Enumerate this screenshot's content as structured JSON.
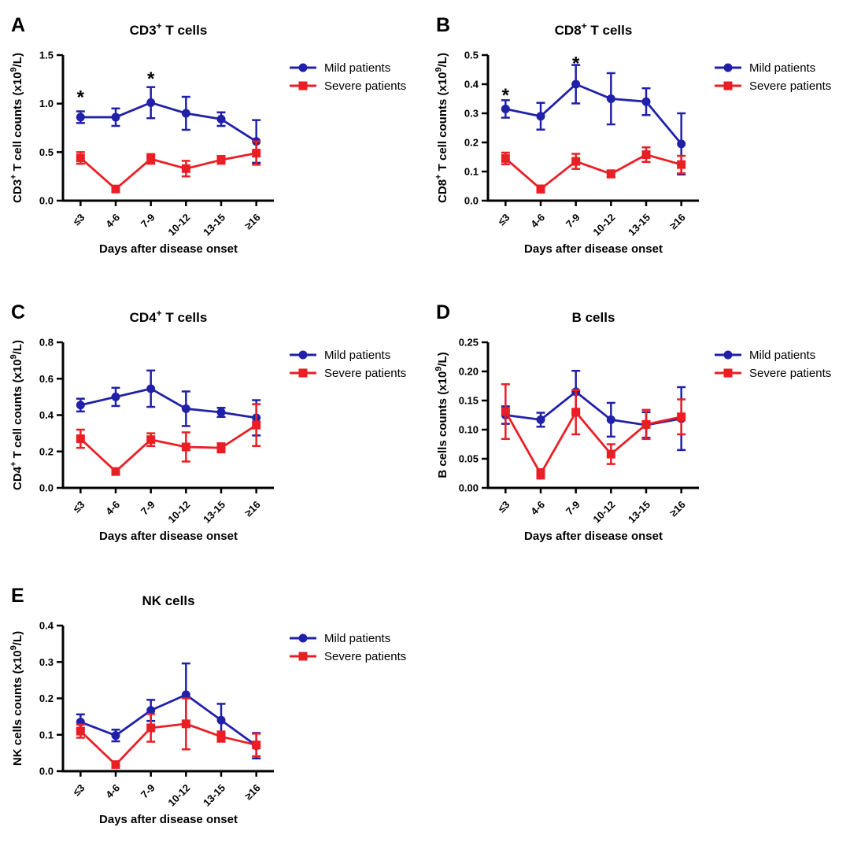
{
  "figure": {
    "background": "#ffffff",
    "text_color": "#000000",
    "x_axis_label": "Days after disease onset",
    "categories": [
      "≤3",
      "4-6",
      "7-9",
      "10-12",
      "13-15",
      "≥16"
    ],
    "legend_labels": [
      "Mild patients",
      "Severe patients"
    ],
    "colors": {
      "mild": "#2021a8",
      "severe": "#ea1f25"
    },
    "panel_letters": [
      "A",
      "B",
      "C",
      "D",
      "E"
    ]
  },
  "chart_data": [
    {
      "panel_letter": "A",
      "type": "line",
      "title": "CD3+ T cells",
      "title_parts": [
        {
          "t": "CD3"
        },
        {
          "s": "+"
        },
        {
          "t": " T cells"
        }
      ],
      "ylabel": "CD3+ T cell counts (x10^9/L)",
      "ylabel_parts": [
        {
          "t": "CD3"
        },
        {
          "s": "+"
        },
        {
          "t": " T cell counts (x10"
        },
        {
          "s": "9"
        },
        {
          "t": "/L)"
        }
      ],
      "xlabel": "Days after disease onset",
      "ylim": [
        0,
        1.5
      ],
      "yticks": [
        "0.0",
        "0.5",
        "1.0",
        "1.5"
      ],
      "categories": [
        "≤3",
        "4-6",
        "7-9",
        "10-12",
        "13-15",
        "≥16"
      ],
      "legend_position": "right-top",
      "grid": false,
      "series": [
        {
          "name": "Mild patients",
          "marker": "circle",
          "color": "#2021a8",
          "values": [
            0.86,
            0.86,
            1.01,
            0.9,
            0.84,
            0.61
          ],
          "errors": [
            0.06,
            0.09,
            0.16,
            0.17,
            0.07,
            0.22
          ]
        },
        {
          "name": "Severe patients",
          "marker": "square",
          "color": "#ea1f25",
          "values": [
            0.44,
            0.12,
            0.43,
            0.33,
            0.42,
            0.49
          ],
          "errors": [
            0.06,
            0.02,
            0.05,
            0.08,
            0.04,
            0.12
          ]
        }
      ],
      "significance": [
        {
          "category_index": 0,
          "symbol": "*",
          "y": 1.09
        },
        {
          "category_index": 2,
          "symbol": "*",
          "y": 1.28
        }
      ]
    },
    {
      "panel_letter": "B",
      "type": "line",
      "title": "CD8+ T cells",
      "title_parts": [
        {
          "t": "CD8"
        },
        {
          "s": "+"
        },
        {
          "t": " T cells"
        }
      ],
      "ylabel": "CD8+ T cell counts (x10^9/L)",
      "ylabel_parts": [
        {
          "t": "CD8"
        },
        {
          "s": "+"
        },
        {
          "t": " T cell counts (x10"
        },
        {
          "s": "9"
        },
        {
          "t": "/L)"
        }
      ],
      "xlabel": "Days after disease onset",
      "ylim": [
        0,
        0.5
      ],
      "yticks": [
        "0.0",
        "0.1",
        "0.2",
        "0.3",
        "0.4",
        "0.5"
      ],
      "categories": [
        "≤3",
        "4-6",
        "7-9",
        "10-12",
        "13-15",
        "≥16"
      ],
      "legend_position": "right-top",
      "grid": false,
      "series": [
        {
          "name": "Mild patients",
          "marker": "circle",
          "color": "#2021a8",
          "values": [
            0.315,
            0.29,
            0.4,
            0.35,
            0.34,
            0.195
          ],
          "errors": [
            0.03,
            0.046,
            0.066,
            0.088,
            0.046,
            0.105
          ]
        },
        {
          "name": "Severe patients",
          "marker": "square",
          "color": "#ea1f25",
          "values": [
            0.145,
            0.04,
            0.135,
            0.092,
            0.158,
            0.124
          ],
          "errors": [
            0.02,
            0.012,
            0.026,
            0.012,
            0.025,
            0.03
          ]
        }
      ],
      "significance": [
        {
          "category_index": 0,
          "symbol": "*",
          "y": 0.37
        },
        {
          "category_index": 2,
          "symbol": "*",
          "y": 0.48
        }
      ]
    },
    {
      "panel_letter": "C",
      "type": "line",
      "title": "CD4+ T cells",
      "title_parts": [
        {
          "t": "CD4"
        },
        {
          "s": "+"
        },
        {
          "t": " T cells"
        }
      ],
      "ylabel": "CD4+ T cell counts (x10^9/L)",
      "ylabel_parts": [
        {
          "t": "CD4"
        },
        {
          "s": "+"
        },
        {
          "t": " T cell counts (x10"
        },
        {
          "s": "9"
        },
        {
          "t": "/L)"
        }
      ],
      "xlabel": "Days after disease onset",
      "ylim": [
        0,
        0.8
      ],
      "yticks": [
        "0.0",
        "0.2",
        "0.4",
        "0.6",
        "0.8"
      ],
      "categories": [
        "≤3",
        "4-6",
        "7-9",
        "10-12",
        "13-15",
        "≥16"
      ],
      "legend_position": "right-top",
      "grid": false,
      "series": [
        {
          "name": "Mild patients",
          "marker": "circle",
          "color": "#2021a8",
          "values": [
            0.455,
            0.5,
            0.545,
            0.435,
            0.415,
            0.385
          ],
          "errors": [
            0.035,
            0.05,
            0.1,
            0.095,
            0.025,
            0.097
          ]
        },
        {
          "name": "Severe patients",
          "marker": "square",
          "color": "#ea1f25",
          "values": [
            0.27,
            0.09,
            0.265,
            0.225,
            0.22,
            0.345
          ],
          "errors": [
            0.05,
            0.012,
            0.035,
            0.08,
            0.025,
            0.115
          ]
        }
      ],
      "significance": []
    },
    {
      "panel_letter": "D",
      "type": "line",
      "title": "B cells",
      "title_parts": [
        {
          "t": "B cells"
        }
      ],
      "ylabel": "B cells counts (x10^9/L)",
      "ylabel_parts": [
        {
          "t": "B cells counts (x10"
        },
        {
          "s": "9"
        },
        {
          "t": "/L)"
        }
      ],
      "xlabel": "Days after disease onset",
      "ylim": [
        0,
        0.25
      ],
      "yticks": [
        "0.00",
        "0.05",
        "0.10",
        "0.15",
        "0.20",
        "0.25"
      ],
      "categories": [
        "≤3",
        "4-6",
        "7-9",
        "10-12",
        "13-15",
        "≥16"
      ],
      "legend_position": "right-top",
      "grid": false,
      "series": [
        {
          "name": "Mild patients",
          "marker": "circle",
          "color": "#2021a8",
          "values": [
            0.125,
            0.117,
            0.165,
            0.117,
            0.108,
            0.119
          ],
          "errors": [
            0.015,
            0.012,
            0.036,
            0.029,
            0.022,
            0.054
          ]
        },
        {
          "name": "Severe patients",
          "marker": "square",
          "color": "#ea1f25",
          "values": [
            0.131,
            0.024,
            0.13,
            0.058,
            0.109,
            0.122
          ],
          "errors": [
            0.047,
            0.008,
            0.038,
            0.017,
            0.025,
            0.03
          ]
        }
      ],
      "significance": []
    },
    {
      "panel_letter": "E",
      "type": "line",
      "title": "NK cells",
      "title_parts": [
        {
          "t": "NK cells"
        }
      ],
      "ylabel": "NK cells counts (x10^9/L)",
      "ylabel_parts": [
        {
          "t": "NK cells counts (x10"
        },
        {
          "s": "9"
        },
        {
          "t": "/L)"
        }
      ],
      "xlabel": "Days after disease onset",
      "ylim": [
        0,
        0.4
      ],
      "yticks": [
        "0.0",
        "0.1",
        "0.2",
        "0.3",
        "0.4"
      ],
      "categories": [
        "≤3",
        "4-6",
        "7-9",
        "10-12",
        "13-15",
        "≥16"
      ],
      "legend_position": "right-top",
      "grid": false,
      "series": [
        {
          "name": "Mild patients",
          "marker": "circle",
          "color": "#2021a8",
          "values": [
            0.135,
            0.098,
            0.167,
            0.21,
            0.14,
            0.07
          ],
          "errors": [
            0.021,
            0.016,
            0.029,
            0.086,
            0.045,
            0.035
          ]
        },
        {
          "name": "Severe patients",
          "marker": "square",
          "color": "#ea1f25",
          "values": [
            0.11,
            0.018,
            0.119,
            0.13,
            0.095,
            0.072
          ],
          "errors": [
            0.018,
            0.008,
            0.038,
            0.07,
            0.014,
            0.031
          ]
        }
      ],
      "significance": []
    }
  ]
}
